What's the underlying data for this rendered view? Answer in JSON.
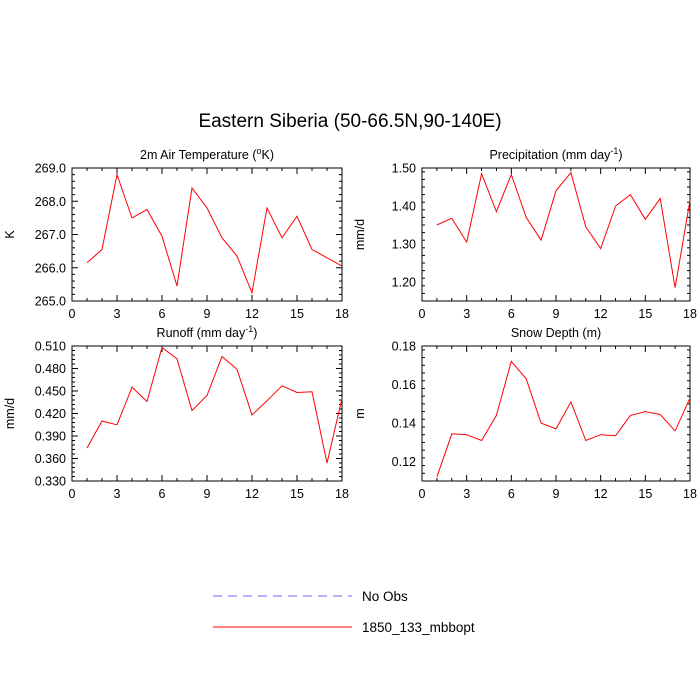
{
  "title": "Eastern Siberia (50-66.5N,90-140E)",
  "series_colors": {
    "model": "#ff0000",
    "obs": "#6a6aff"
  },
  "legend": [
    {
      "label": "No Obs",
      "style": "dashed",
      "color": "#6a6aff"
    },
    {
      "label": "1850_133_mbbopt",
      "style": "solid",
      "color": "#ff0000"
    }
  ],
  "chart_data": [
    {
      "type": "line",
      "title_main": "2m Air Temperature (",
      "title_sup": "o",
      "title_tail": "K)",
      "ylabel": "K",
      "xlim": [
        0,
        18
      ],
      "ylim": [
        265.0,
        269.0
      ],
      "xticks": [
        0,
        3,
        6,
        9,
        12,
        15,
        18
      ],
      "yticks": [
        265.0,
        266.0,
        267.0,
        268.0,
        269.0
      ],
      "ytick_labels": [
        "265.0",
        "266.0",
        "267.0",
        "268.0",
        "269.0"
      ],
      "series": [
        {
          "name": "1850_133_mbbopt",
          "x": [
            1,
            2,
            3,
            4,
            5,
            6,
            7,
            8,
            9,
            10,
            11,
            12,
            13,
            14,
            15,
            16,
            17,
            18
          ],
          "values": [
            266.15,
            266.55,
            268.8,
            267.5,
            267.75,
            266.95,
            265.45,
            268.4,
            267.8,
            266.9,
            266.35,
            265.25,
            267.8,
            266.9,
            267.55,
            266.55,
            266.3,
            266.05
          ]
        }
      ]
    },
    {
      "type": "line",
      "title_main": "Precipitation (mm day",
      "title_sup": "-1",
      "title_tail": ")",
      "ylabel": "mm/d",
      "xlim": [
        0,
        18
      ],
      "ylim": [
        1.15,
        1.5
      ],
      "xticks": [
        0,
        3,
        6,
        9,
        12,
        15,
        18
      ],
      "yticks": [
        1.2,
        1.3,
        1.4,
        1.5
      ],
      "ytick_labels": [
        "1.20",
        "1.30",
        "1.40",
        "1.50"
      ],
      "series": [
        {
          "name": "1850_133_mbbopt",
          "x": [
            1,
            2,
            3,
            4,
            5,
            6,
            7,
            8,
            9,
            10,
            11,
            12,
            13,
            14,
            15,
            16,
            17,
            18
          ],
          "values": [
            1.35,
            1.368,
            1.305,
            1.485,
            1.385,
            1.483,
            1.37,
            1.31,
            1.44,
            1.488,
            1.345,
            1.288,
            1.4,
            1.43,
            1.365,
            1.42,
            1.185,
            1.415
          ]
        }
      ]
    },
    {
      "type": "line",
      "title_main": "Runoff (mm day",
      "title_sup": "-1",
      "title_tail": ")",
      "ylabel": "mm/d",
      "xlim": [
        0,
        18
      ],
      "ylim": [
        0.33,
        0.51
      ],
      "xticks": [
        0,
        3,
        6,
        9,
        12,
        15,
        18
      ],
      "yticks": [
        0.33,
        0.36,
        0.39,
        0.42,
        0.45,
        0.48,
        0.51
      ],
      "ytick_labels": [
        "0.330",
        "0.360",
        "0.390",
        "0.420",
        "0.450",
        "0.480",
        "0.510"
      ],
      "series": [
        {
          "name": "1850_133_mbbopt",
          "x": [
            1,
            2,
            3,
            4,
            5,
            6,
            7,
            8,
            9,
            10,
            11,
            12,
            13,
            14,
            15,
            16,
            17,
            18
          ],
          "values": [
            0.374,
            0.41,
            0.405,
            0.455,
            0.436,
            0.508,
            0.493,
            0.424,
            0.444,
            0.496,
            0.479,
            0.418,
            0.437,
            0.457,
            0.448,
            0.449,
            0.354,
            0.44
          ]
        }
      ]
    },
    {
      "type": "line",
      "title_main": "Snow Depth (m)",
      "title_sup": "",
      "title_tail": "",
      "ylabel": "m",
      "xlim": [
        0,
        18
      ],
      "ylim": [
        0.11,
        0.18
      ],
      "xticks": [
        0,
        3,
        6,
        9,
        12,
        15,
        18
      ],
      "yticks": [
        0.12,
        0.14,
        0.16,
        0.18
      ],
      "ytick_labels": [
        "0.12",
        "0.14",
        "0.16",
        "0.18"
      ],
      "series": [
        {
          "name": "1850_133_mbbopt",
          "x": [
            1,
            2,
            3,
            4,
            5,
            6,
            7,
            8,
            9,
            10,
            11,
            12,
            13,
            14,
            15,
            16,
            17,
            18
          ],
          "values": [
            0.112,
            0.1345,
            0.134,
            0.131,
            0.144,
            0.172,
            0.163,
            0.14,
            0.137,
            0.151,
            0.131,
            0.134,
            0.1335,
            0.144,
            0.146,
            0.1445,
            0.136,
            0.153
          ]
        }
      ]
    }
  ]
}
